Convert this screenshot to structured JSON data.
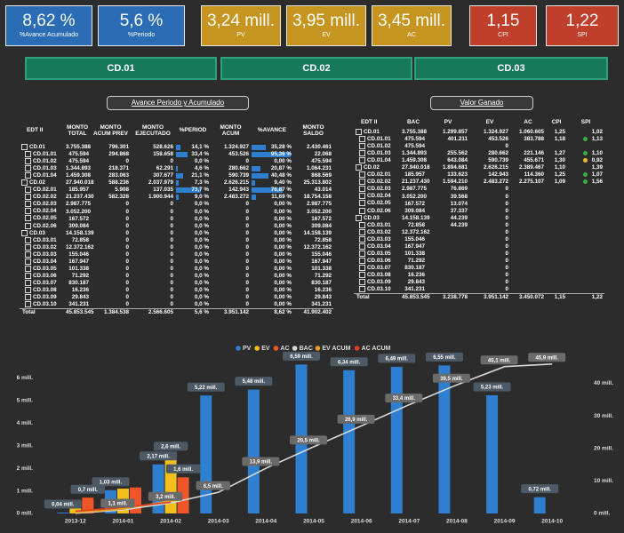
{
  "kpis": [
    {
      "value": "8,62 %",
      "label": "%Avance Acumulado"
    },
    {
      "value": "5,6 %",
      "label": "%Periodo"
    },
    {
      "value": "3,24 mill.",
      "label": "PV"
    },
    {
      "value": "3,95 mill.",
      "label": "EV"
    },
    {
      "value": "3,45 mill.",
      "label": "AC"
    },
    {
      "value": "1,15",
      "label": "CPI"
    },
    {
      "value": "1,22",
      "label": "SPI"
    }
  ],
  "tabs": [
    "CD.01",
    "CD.02",
    "CD.03"
  ],
  "table_left": {
    "title": "Avance Periodo y Acumulado",
    "header": [
      "EDT II",
      "MONTO TOTAL",
      "MONTO ACUM PREV",
      "MONTO EJECUTADO",
      "%PERIOD",
      "MONTO ACUM",
      "%AVANCE",
      "MONTO SALDO"
    ],
    "rows": [
      [
        "CD.01",
        "3.755.388",
        "796.301",
        "528.626",
        "14,1 %",
        "1.324.927",
        "35,28 %",
        "2.430.461"
      ],
      [
        "CD.01.01",
        "475.594",
        "294.868",
        "158.658",
        "33,4 %",
        "453.526",
        "95,36 %",
        "22.068"
      ],
      [
        "CD.01.02",
        "475.594",
        "0",
        "0",
        "0,0 %",
        "0",
        "0,00 %",
        "475.594"
      ],
      [
        "CD.01.03",
        "1.344.893",
        "218.371",
        "62.291",
        "4,6 %",
        "280.662",
        "20,87 %",
        "1.064.231"
      ],
      [
        "CD.01.04",
        "1.459.308",
        "283.063",
        "307.677",
        "21,1 %",
        "590.739",
        "40,48 %",
        "868.569"
      ],
      [
        "CD.02",
        "27.940.018",
        "588.236",
        "2.037.979",
        "7,3 %",
        "2.626.215",
        "9,40 %",
        "25.313.802"
      ],
      [
        "CD.02.01",
        "185.957",
        "5.908",
        "137.035",
        "73,7 %",
        "142.943",
        "76,87 %",
        "43.014"
      ],
      [
        "CD.02.02",
        "21.237.430",
        "582.328",
        "1.900.944",
        "9,0 %",
        "2.483.272",
        "11,69 %",
        "18.754.158"
      ],
      [
        "CD.02.03",
        "2.987.775",
        "0",
        "0",
        "0,0 %",
        "0",
        "0,00 %",
        "2.987.775"
      ],
      [
        "CD.02.04",
        "3.052.200",
        "0",
        "0",
        "0,0 %",
        "0",
        "0,00 %",
        "3.052.200"
      ],
      [
        "CD.02.05",
        "167.572",
        "0",
        "0",
        "0,0 %",
        "0",
        "0,00 %",
        "167.572"
      ],
      [
        "CD.02.06",
        "309.084",
        "0",
        "0",
        "0,0 %",
        "0",
        "0,00 %",
        "309.084"
      ],
      [
        "CD.03",
        "14.158.139",
        "0",
        "0",
        "0,0 %",
        "0",
        "0,00 %",
        "14.158.139"
      ],
      [
        "CD.03.01",
        "72.858",
        "0",
        "0",
        "0,0 %",
        "0",
        "0,00 %",
        "72.858"
      ],
      [
        "CD.03.02",
        "12.372.162",
        "0",
        "0",
        "0,0 %",
        "0",
        "0,00 %",
        "12.372.162"
      ],
      [
        "CD.03.03",
        "155.046",
        "0",
        "0",
        "0,0 %",
        "0",
        "0,00 %",
        "155.046"
      ],
      [
        "CD.03.04",
        "167.947",
        "0",
        "0",
        "0,0 %",
        "0",
        "0,00 %",
        "167.947"
      ],
      [
        "CD.03.05",
        "101.338",
        "0",
        "0",
        "0,0 %",
        "0",
        "0,00 %",
        "101.338"
      ],
      [
        "CD.03.06",
        "71.292",
        "0",
        "0",
        "0,0 %",
        "0",
        "0,00 %",
        "71.292"
      ],
      [
        "CD.03.07",
        "830.187",
        "0",
        "0",
        "0,0 %",
        "0",
        "0,00 %",
        "830.187"
      ],
      [
        "CD.03.08",
        "16.236",
        "0",
        "0",
        "0,0 %",
        "0",
        "0,00 %",
        "16.236"
      ],
      [
        "CD.03.09",
        "29.843",
        "0",
        "0",
        "0,0 %",
        "0",
        "0,00 %",
        "29.843"
      ],
      [
        "CD.03.10",
        "341.231",
        "0",
        "0",
        "0,0 %",
        "0",
        "0,00 %",
        "341.231"
      ]
    ],
    "total": [
      "Total",
      "45.853.545",
      "1.384.538",
      "2.566.605",
      "5,6 %",
      "3.951.142",
      "8,62 %",
      "41.902.402"
    ]
  },
  "table_right": {
    "title": "Valor Ganado",
    "header": [
      "EDT II",
      "BAC",
      "PV",
      "EV",
      "AC",
      "CPI",
      "SPI"
    ],
    "rows": [
      [
        "CD.01",
        "3.755.388",
        "1.299.857",
        "1.324.927",
        "1.060.605",
        "1,25",
        "1,02"
      ],
      [
        "CD.01.01",
        "475.594",
        "401.211",
        "453.526",
        "383.788",
        "1,18",
        "1,13"
      ],
      [
        "CD.01.02",
        "475.594",
        null,
        "0",
        null,
        null,
        null
      ],
      [
        "CD.01.03",
        "1.344.893",
        "255.562",
        "280.662",
        "221.146",
        "1,27",
        "1,10"
      ],
      [
        "CD.01.04",
        "1.459.308",
        "643.084",
        "590.739",
        "455.671",
        "1,30",
        "0,92"
      ],
      [
        "CD.02",
        "27.940.018",
        "1.894.681",
        "2.626.215",
        "2.389.467",
        "1,10",
        "1,39"
      ],
      [
        "CD.02.01",
        "185.957",
        "133.623",
        "142.943",
        "114.360",
        "1,25",
        "1,07"
      ],
      [
        "CD.02.02",
        "21.237.430",
        "1.594.210",
        "2.483.272",
        "2.275.107",
        "1,09",
        "1,56"
      ],
      [
        "CD.02.03",
        "2.987.775",
        "76.869",
        "0",
        null,
        null,
        null
      ],
      [
        "CD.02.04",
        "3.052.200",
        "39.568",
        "0",
        null,
        null,
        null
      ],
      [
        "CD.02.05",
        "167.572",
        "13.074",
        "0",
        null,
        null,
        null
      ],
      [
        "CD.02.06",
        "309.084",
        "37.337",
        "0",
        null,
        null,
        null
      ],
      [
        "CD.03",
        "14.158.139",
        "44.239",
        "0",
        null,
        null,
        null
      ],
      [
        "CD.03.01",
        "72.858",
        "44.239",
        "0",
        null,
        null,
        null
      ],
      [
        "CD.03.02",
        "12.372.162",
        null,
        "0",
        null,
        null,
        null
      ],
      [
        "CD.03.03",
        "155.046",
        null,
        "0",
        null,
        null,
        null
      ],
      [
        "CD.03.04",
        "167.947",
        null,
        "0",
        null,
        null,
        null
      ],
      [
        "CD.03.05",
        "101.338",
        null,
        "0",
        null,
        null,
        null
      ],
      [
        "CD.03.06",
        "71.292",
        null,
        "0",
        null,
        null,
        null
      ],
      [
        "CD.03.07",
        "830.187",
        null,
        "0",
        null,
        null,
        null
      ],
      [
        "CD.03.08",
        "16.236",
        null,
        "0",
        null,
        null,
        null
      ],
      [
        "CD.03.09",
        "29.843",
        null,
        "0",
        null,
        null,
        null
      ],
      [
        "CD.03.10",
        "341.231",
        null,
        "0",
        null,
        null,
        null
      ]
    ],
    "total": [
      "Total",
      "45.853.545",
      "3.238.778",
      "3.951.142",
      "3.450.072",
      "1,15",
      "1,22"
    ]
  },
  "chart_data": {
    "type": "bar",
    "categories": [
      "2013-12",
      "2014-01",
      "2014-02",
      "2014-03",
      "2014-04",
      "2014-05",
      "2014-06",
      "2014-07",
      "2014-08",
      "2014-09",
      "2014-10"
    ],
    "series": [
      {
        "name": "PV",
        "color": "#2f7fd0",
        "values": [
          0.04,
          1.03,
          2.17,
          5.22,
          5.48,
          6.59,
          6.34,
          6.49,
          6.55,
          5.23,
          0.72
        ],
        "value_labels": [
          "0,04 mill.",
          "1,03 mill.",
          "2,17 mill.",
          "5,22 mill.",
          "5,48 mill.",
          "6,59 mill.",
          "6,34 mill.",
          "6,49 mill.",
          "6,55 mill.",
          "5,23 mill.",
          "0,72 mill."
        ]
      },
      {
        "name": "EV",
        "color": "#f2c01c",
        "values": [
          0.25,
          1.1,
          2.6,
          null,
          null,
          null,
          null,
          null,
          null,
          null,
          null
        ],
        "value_labels": [
          null,
          null,
          "2,6 mill.",
          null,
          null,
          null,
          null,
          null,
          null,
          null,
          null
        ]
      },
      {
        "name": "AC",
        "color": "#f0562a",
        "values": [
          0.7,
          1.15,
          1.6,
          null,
          null,
          null,
          null,
          null,
          null,
          null,
          null
        ],
        "value_labels": [
          "0,7 mill.",
          null,
          "1,6 mill.",
          null,
          null,
          null,
          null,
          null,
          null,
          null,
          null
        ]
      },
      {
        "name": "BAC",
        "color": "#d8d8d8",
        "type": "line",
        "axis": "y2",
        "values": [
          0.04,
          1.1,
          3.2,
          6.5,
          13.9,
          20.5,
          26.9,
          33.4,
          39.5,
          45.1,
          45.9
        ],
        "value_labels": [
          null,
          "1,1 mill.",
          "3,2 mill.",
          "6,5 mill.",
          "13,9 mill.",
          "20,5 mill.",
          "26,9 mill.",
          "33,4 mill.",
          "39,5 mill.",
          "45,1 mill.",
          "45,9 mill."
        ]
      },
      {
        "name": "EV ACUM",
        "color": "#e8a020",
        "type": "line",
        "axis": "y2",
        "values": [
          0.25,
          1.35,
          3.95,
          null,
          null,
          null,
          null,
          null,
          null,
          null,
          null
        ]
      },
      {
        "name": "AC ACUM",
        "color": "#e0401c",
        "type": "line",
        "axis": "y2",
        "values": [
          0.7,
          1.85,
          3.45,
          null,
          null,
          null,
          null,
          null,
          null,
          null,
          null
        ]
      }
    ],
    "ylim": [
      0,
      6.8
    ],
    "yticks": [
      {
        "value": 0,
        "label": "0 mill."
      },
      {
        "value": 1,
        "label": "1 mill."
      },
      {
        "value": 2,
        "label": "2 mill."
      },
      {
        "value": 3,
        "label": "3 mill."
      },
      {
        "value": 4,
        "label": "4 mill."
      },
      {
        "value": 5,
        "label": "5 mill."
      },
      {
        "value": 6,
        "label": "6 mill."
      }
    ],
    "y2lim": [
      0,
      47.2
    ],
    "y2ticks": [
      {
        "value": 0,
        "label": "0 mill."
      },
      {
        "value": 10,
        "label": "10 mill."
      },
      {
        "value": 20,
        "label": "20 mill."
      },
      {
        "value": 30,
        "label": "30 mill."
      },
      {
        "value": 40,
        "label": "40 mill."
      }
    ],
    "legend": "top",
    "grid": false
  }
}
